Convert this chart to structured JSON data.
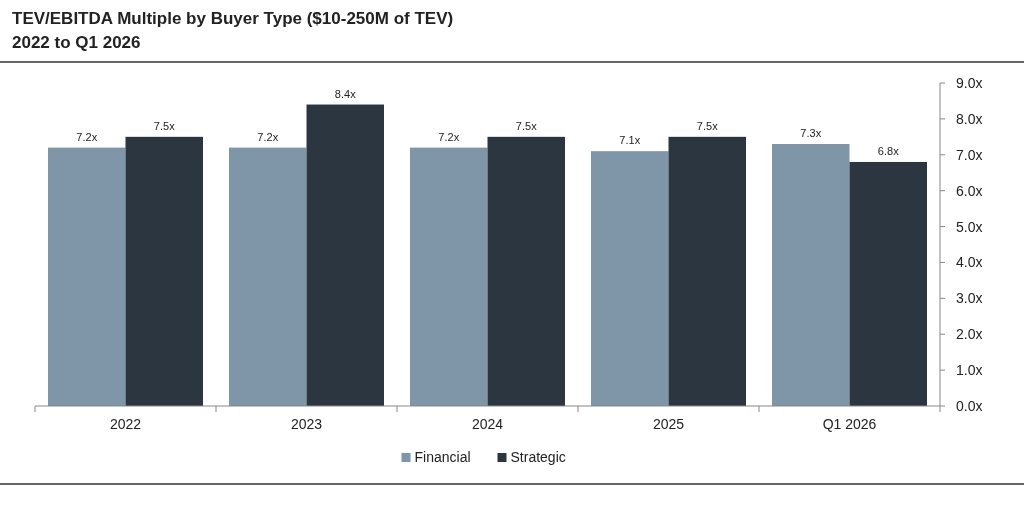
{
  "chart_data": {
    "type": "bar",
    "title": "TEV/EBITDA Multiple by Buyer Type ($10-250M of TEV)",
    "subtitle": "2022 to Q1 2026",
    "categories": [
      "2022",
      "2023",
      "2024",
      "2025",
      "Q1 2026"
    ],
    "series": [
      {
        "name": "Financial",
        "color": "#7f95a8",
        "values": [
          7.2,
          7.2,
          7.2,
          7.1,
          7.3
        ],
        "value_labels": [
          "7.2x",
          "7.2x",
          "7.2x",
          "7.1x",
          "7.3x"
        ]
      },
      {
        "name": "Strategic",
        "color": "#2b3640",
        "values": [
          7.5,
          8.4,
          7.5,
          7.5,
          6.8
        ],
        "value_labels": [
          "7.5x",
          "8.4x",
          "7.5x",
          "7.5x",
          "6.8x"
        ]
      }
    ],
    "ylim": [
      0,
      9
    ],
    "yticks": [
      {
        "value": 0,
        "label": "0.0x"
      },
      {
        "value": 1,
        "label": "1.0x"
      },
      {
        "value": 2,
        "label": "2.0x"
      },
      {
        "value": 3,
        "label": "3.0x"
      },
      {
        "value": 4,
        "label": "4.0x"
      },
      {
        "value": 5,
        "label": "5.0x"
      },
      {
        "value": 6,
        "label": "6.0x"
      },
      {
        "value": 7,
        "label": "7.0x"
      },
      {
        "value": 8,
        "label": "8.0x"
      },
      {
        "value": 9,
        "label": "9.0x"
      }
    ],
    "grid": false,
    "legend": "bottom"
  }
}
